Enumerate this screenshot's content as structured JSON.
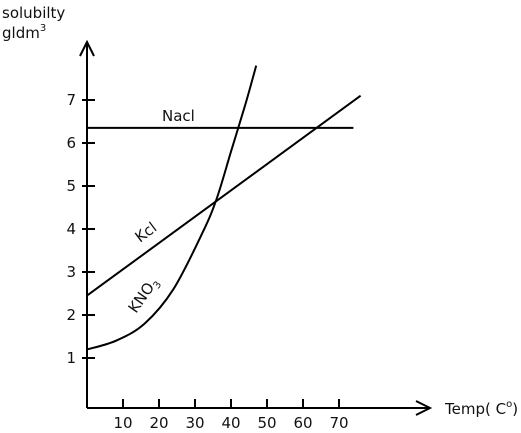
{
  "chart_data": {
    "type": "line",
    "title": "",
    "ylabel_line1": "solubilty",
    "ylabel_line2": "gldm",
    "ylabel_sup": "3",
    "xlabel_main": "Temp( C",
    "xlabel_sup": "o",
    "xlabel_close": ")",
    "xticks": [
      "10",
      "20",
      "30",
      "40",
      "50",
      "60",
      "70"
    ],
    "yticks": [
      "1",
      "2",
      "3",
      "4",
      "5",
      "6",
      "7"
    ],
    "xlim": [
      0,
      90
    ],
    "ylim": [
      0,
      8
    ],
    "grid": false,
    "series": [
      {
        "name": "Nacl",
        "x": [
          0,
          74
        ],
        "y": [
          6.35,
          6.35
        ]
      },
      {
        "name": "Kcl",
        "x": [
          0,
          76
        ],
        "y": [
          2.45,
          7.1
        ]
      },
      {
        "name": "KNO",
        "subscript": "3",
        "x": [
          0,
          8,
          16,
          24,
          32,
          36,
          40,
          44,
          47
        ],
        "y": [
          1.2,
          1.4,
          1.8,
          2.6,
          3.9,
          4.7,
          5.8,
          6.9,
          7.8
        ]
      }
    ]
  }
}
